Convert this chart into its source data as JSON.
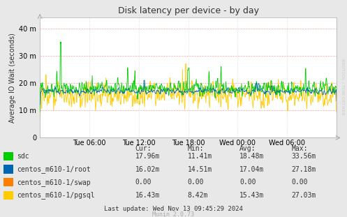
{
  "title": "Disk latency per device - by day",
  "ylabel": "Average IO Wait (seconds)",
  "background_color": "#e8e8e8",
  "plot_bg_color": "#ffffff",
  "yticks": [
    0,
    10,
    20,
    30,
    40
  ],
  "ytick_labels": [
    "0",
    "10 m",
    "20 m",
    "30 m",
    "40 m"
  ],
  "ylim": [
    0,
    44
  ],
  "xtick_labels": [
    "Tue 06:00",
    "Tue 12:00",
    "Tue 18:00",
    "Wed 00:00",
    "Wed 06:00"
  ],
  "series": [
    {
      "label": "sdc",
      "color": "#00cc00"
    },
    {
      "label": "centos_m610-1/root",
      "color": "#0066b3"
    },
    {
      "label": "centos_m610-1/swap",
      "color": "#ff8000"
    },
    {
      "label": "centos_m610-1/pgsql",
      "color": "#ffcc00"
    }
  ],
  "legend_table": {
    "headers": [
      "Cur:",
      "Min:",
      "Avg:",
      "Max:"
    ],
    "rows": [
      [
        "17.96m",
        "11.41m",
        "18.48m",
        "33.56m"
      ],
      [
        "16.02m",
        "14.51m",
        "17.04m",
        "27.18m"
      ],
      [
        "0.00",
        "0.00",
        "0.00",
        "0.00"
      ],
      [
        "16.43m",
        "8.42m",
        "15.43m",
        "27.03m"
      ]
    ]
  },
  "last_update": "Last update: Wed Nov 13 09:45:29 2024",
  "munin_version": "Munin 2.0.73",
  "rrdtool_label": "RRDTOOL / TOBI OETIKER",
  "n_points": 800,
  "random_seed": 42
}
